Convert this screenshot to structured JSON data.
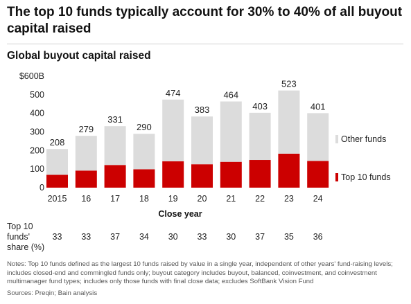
{
  "headline": "The top 10 funds typically account for 30% to 40% of all buyout capital raised",
  "share_label": [
    "Top 10",
    "funds'",
    "share (%)"
  ],
  "notes": "Notes: Top 10 funds defined as the largest 10 funds raised by value in a single year, independent of other years' fund-raising levels; includes closed-end and commingled funds only; buyout category includes buyout, balanced, coinvestment, and coinvestment multimanager fund types; includes only those funds with final close data; excludes SoftBank Vision Fund",
  "sources": "Sources: Preqin; Bain analysis",
  "chart_data": {
    "type": "bar",
    "stacked": true,
    "title": "Global buyout capital raised",
    "xlabel": "Close year",
    "ylabel": "",
    "y_tick_labels": [
      "0",
      "100",
      "200",
      "300",
      "400",
      "500",
      "$600B"
    ],
    "y_ticks": [
      0,
      100,
      200,
      300,
      400,
      500,
      600
    ],
    "ylim": [
      0,
      600
    ],
    "categories": [
      "2015",
      "16",
      "17",
      "18",
      "19",
      "20",
      "21",
      "22",
      "23",
      "24"
    ],
    "totals": [
      208,
      279,
      331,
      290,
      474,
      383,
      464,
      403,
      523,
      401
    ],
    "series": [
      {
        "name": "Top 10 funds",
        "color": "#cc0000",
        "values": [
          69,
          92,
          122,
          99,
          142,
          126,
          139,
          149,
          183,
          144
        ]
      },
      {
        "name": "Other funds",
        "color": "#dcdcdc",
        "values": [
          139,
          187,
          209,
          191,
          332,
          257,
          325,
          254,
          340,
          257
        ]
      }
    ],
    "top10_share_pct": [
      33,
      33,
      37,
      34,
      30,
      33,
      30,
      37,
      35,
      36
    ],
    "legend_placement": "right",
    "grid": false
  }
}
